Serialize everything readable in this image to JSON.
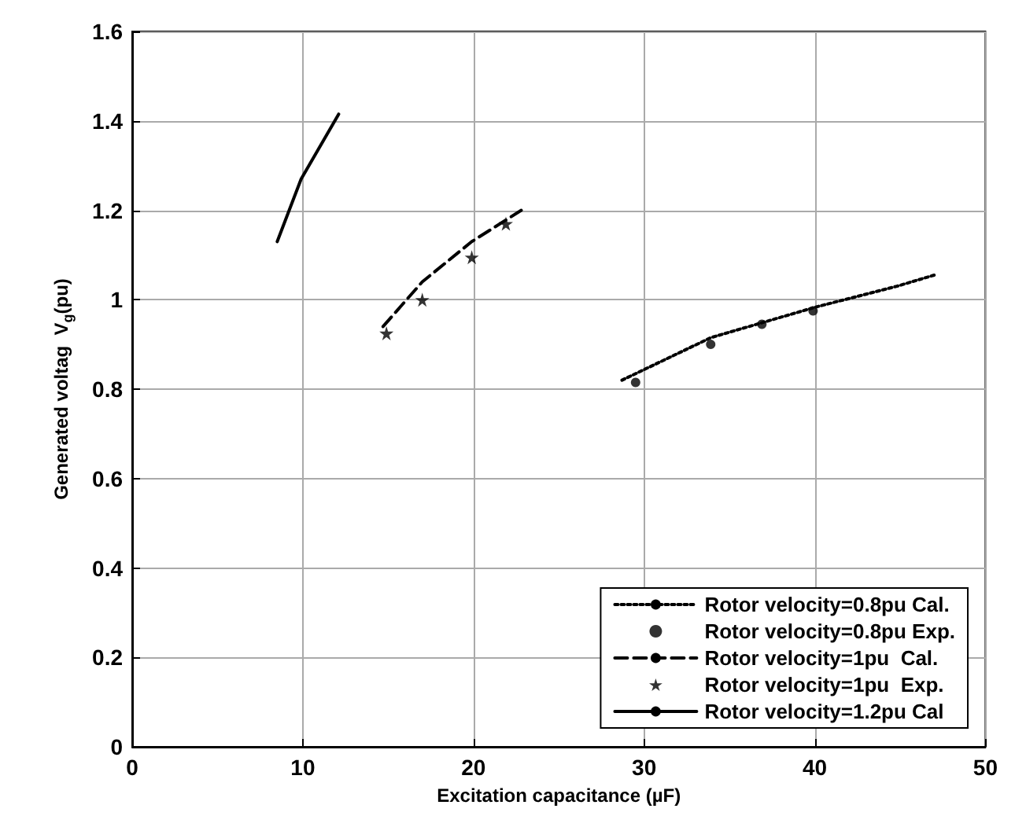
{
  "chart_data": {
    "type": "line",
    "xlabel": "Excitation capacitance (µF)",
    "ylabel": "Generated voltag  V$_{g}$(pu)",
    "xlim": [
      0,
      50
    ],
    "xticks": [
      0,
      10,
      20,
      30,
      40,
      50
    ],
    "ylim": [
      0,
      1.6
    ],
    "yticks": [
      0,
      0.2,
      0.4,
      0.6,
      0.8,
      1,
      1.2,
      1.4,
      1.6
    ],
    "grid": true,
    "legend": "bottom right",
    "series": [
      {
        "name": "Rotor velocity=0.8pu Cal.",
        "color": "#000000",
        "line_style": "dotted",
        "marker": "none",
        "x": [
          28.7,
          33.9,
          40,
          44.8,
          47
        ],
        "values": [
          0.82,
          0.915,
          0.983,
          1.03,
          1.055
        ]
      },
      {
        "name": "Rotor velocity=0.8pu Exp.",
        "type": "scatter",
        "color": "#000000",
        "marker": "circle",
        "x": [
          29.5,
          33.9,
          36.9,
          39.9
        ],
        "values": [
          0.815,
          0.9,
          0.945,
          0.975
        ]
      },
      {
        "name": "Rotor velocity=1pu  Cal.",
        "color": "#000000",
        "line_style": "dashed",
        "marker": "none",
        "x": [
          14.7,
          17,
          19.9,
          22.8
        ],
        "values": [
          0.94,
          1.04,
          1.13,
          1.2
        ]
      },
      {
        "name": "Rotor velocity=1pu  Exp.",
        "type": "scatter",
        "color": "#000000",
        "marker": "star",
        "x": [
          14.9,
          17,
          19.9,
          21.9
        ],
        "values": [
          0.925,
          1.0,
          1.095,
          1.17
        ]
      },
      {
        "name": "Rotor velocity=1.2pu Cal",
        "color": "#000000",
        "line_style": "solid",
        "marker": "none",
        "x": [
          8.5,
          9.9,
          12.1
        ],
        "values": [
          1.13,
          1.27,
          1.415
        ]
      }
    ]
  }
}
